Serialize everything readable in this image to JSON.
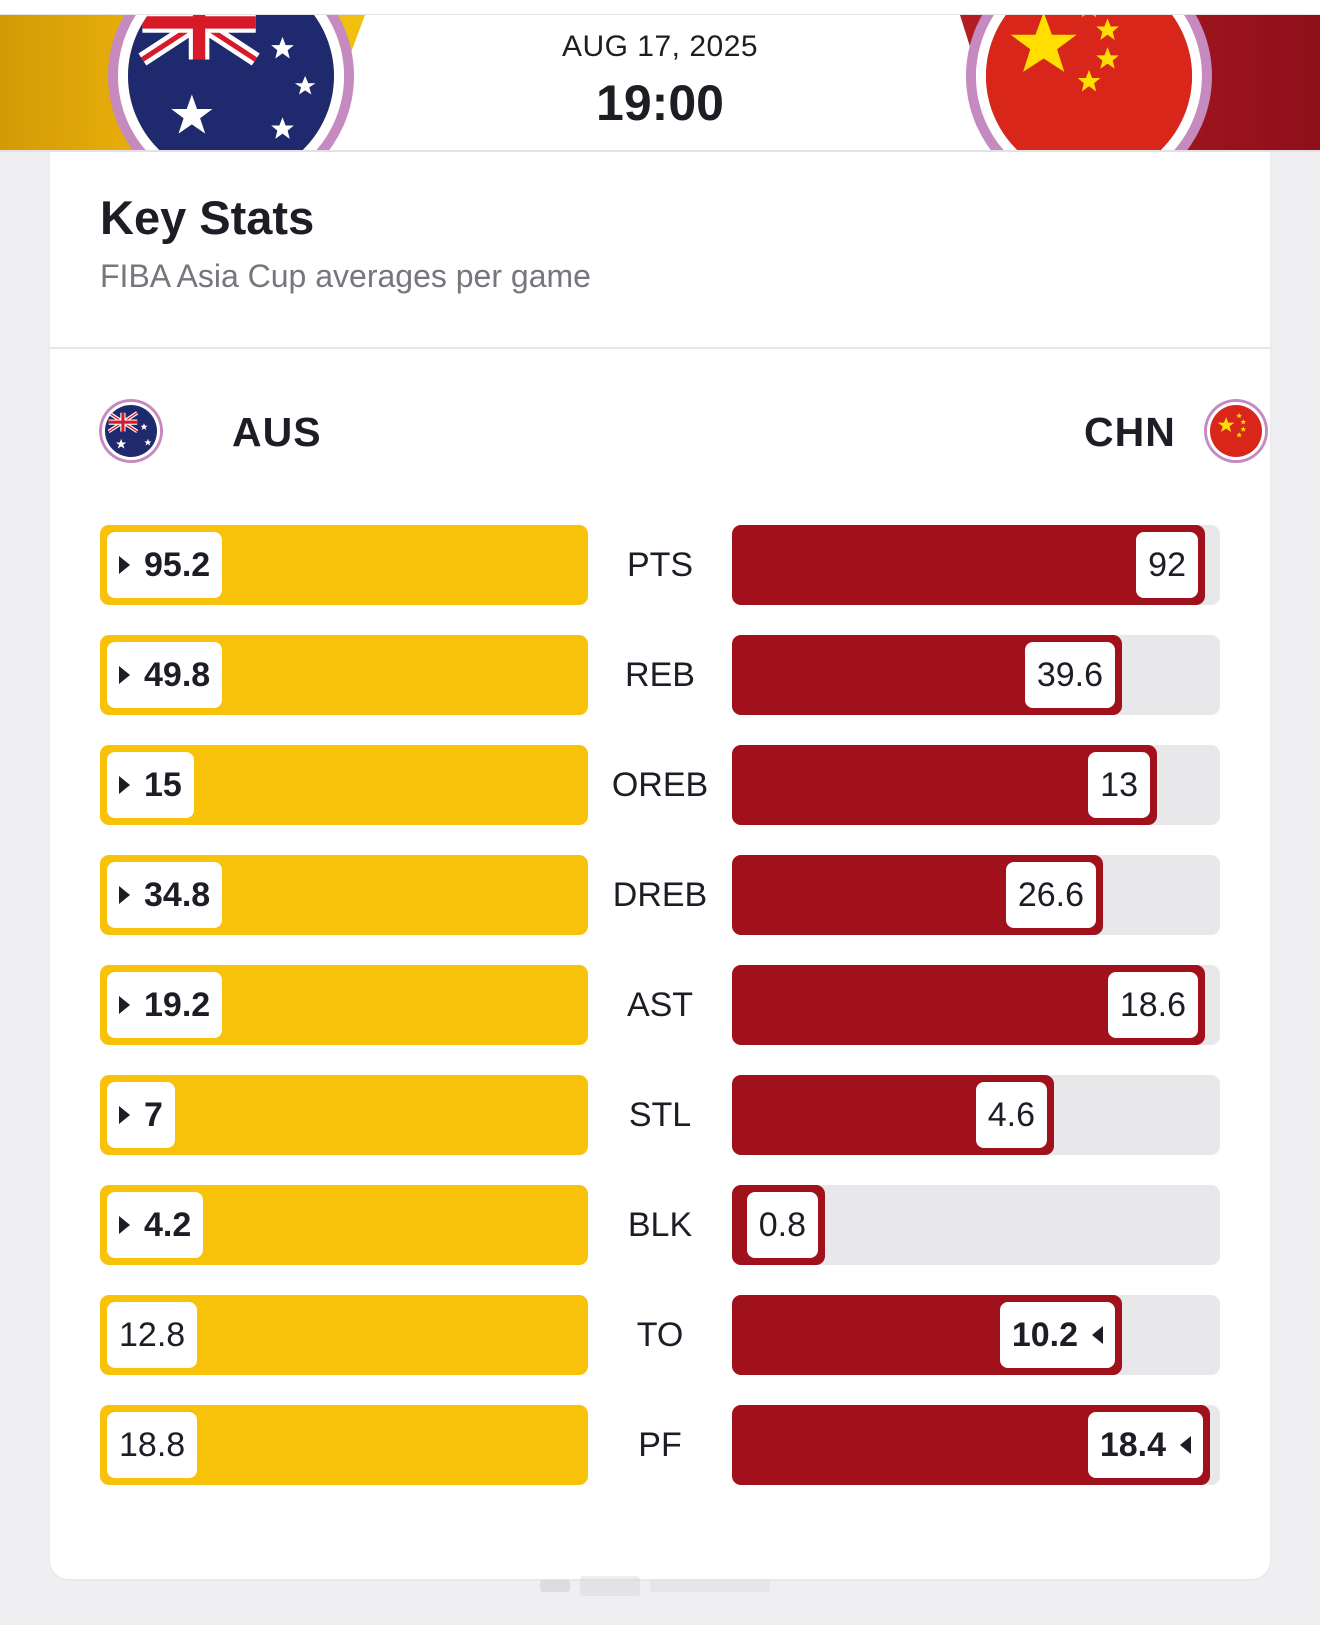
{
  "header": {
    "date": "AUG 17, 2025",
    "time": "19:00",
    "left_color": "#f1c10e",
    "right_color": "#a0111c"
  },
  "card": {
    "title": "Key Stats",
    "subtitle": "FIBA Asia Cup averages per game"
  },
  "teams": {
    "home": {
      "abbr": "AUS",
      "flag_icon": "australia-flag-icon",
      "bar_color": "#f8c10a"
    },
    "away": {
      "abbr": "CHN",
      "flag_icon": "china-flag-icon",
      "bar_color": "#a0111c"
    }
  },
  "stats": [
    {
      "label": "PTS",
      "aus": "95.2",
      "chn": "92",
      "leader": "aus",
      "aus_fraction": 1.0,
      "chn_fraction": 0.97
    },
    {
      "label": "REB",
      "aus": "49.8",
      "chn": "39.6",
      "leader": "aus",
      "aus_fraction": 1.0,
      "chn_fraction": 0.8
    },
    {
      "label": "OREB",
      "aus": "15",
      "chn": "13",
      "leader": "aus",
      "aus_fraction": 1.0,
      "chn_fraction": 0.87
    },
    {
      "label": "DREB",
      "aus": "34.8",
      "chn": "26.6",
      "leader": "aus",
      "aus_fraction": 1.0,
      "chn_fraction": 0.76
    },
    {
      "label": "AST",
      "aus": "19.2",
      "chn": "18.6",
      "leader": "aus",
      "aus_fraction": 1.0,
      "chn_fraction": 0.97
    },
    {
      "label": "STL",
      "aus": "7",
      "chn": "4.6",
      "leader": "aus",
      "aus_fraction": 1.0,
      "chn_fraction": 0.66
    },
    {
      "label": "BLK",
      "aus": "4.2",
      "chn": "0.8",
      "leader": "aus",
      "aus_fraction": 1.0,
      "chn_fraction": 0.19
    },
    {
      "label": "TO",
      "aus": "12.8",
      "chn": "10.2",
      "leader": "chn",
      "aus_fraction": 1.0,
      "chn_fraction": 0.8
    },
    {
      "label": "PF",
      "aus": "18.8",
      "chn": "18.4",
      "leader": "chn",
      "aus_fraction": 1.0,
      "chn_fraction": 0.98
    }
  ]
}
